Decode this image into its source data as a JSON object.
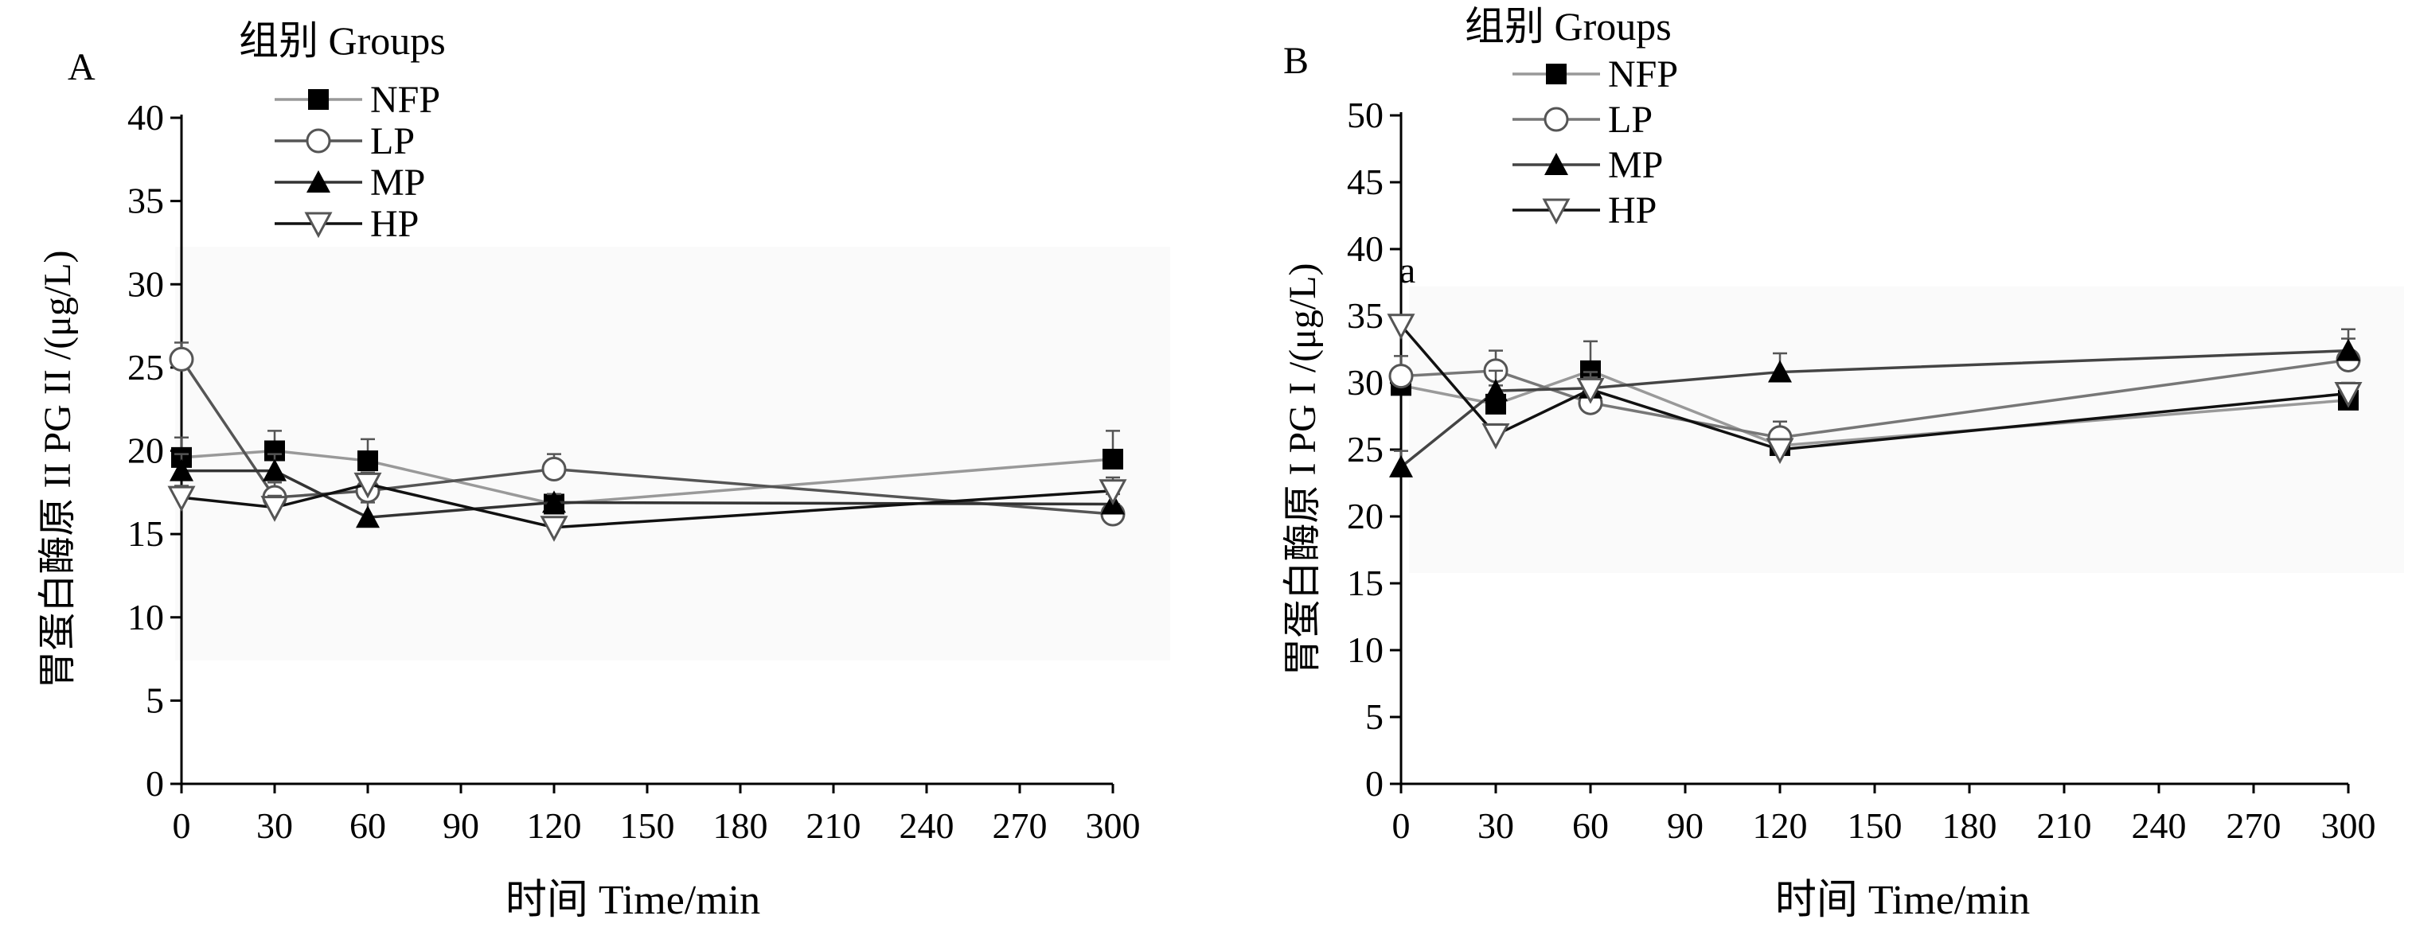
{
  "chart_data": [
    {
      "panel_label": "A",
      "type": "line",
      "legend_title": "组别 Groups",
      "xlabel": "时间  Time/min",
      "ylabel": "胃蛋白酶原 II  PG II /(μg/L)",
      "x_ticks": [
        0,
        30,
        60,
        90,
        120,
        150,
        180,
        210,
        240,
        270,
        300
      ],
      "y_ticks": [
        0,
        5,
        10,
        15,
        20,
        25,
        30,
        35,
        40
      ],
      "xlim": [
        0,
        300
      ],
      "ylim": [
        0,
        40
      ],
      "x": [
        0,
        30,
        60,
        120,
        300
      ],
      "series": [
        {
          "name": "NFP",
          "marker": "square",
          "color": "#999999",
          "values": [
            19.6,
            20.0,
            19.4,
            16.8,
            19.5
          ],
          "err": [
            1.2,
            1.2,
            1.3,
            0.6,
            1.7
          ]
        },
        {
          "name": "LP",
          "marker": "circle-open",
          "color": "#555555",
          "values": [
            25.5,
            17.2,
            17.6,
            18.9,
            16.2
          ],
          "err": [
            1.0,
            0.9,
            1.0,
            0.9,
            0.6
          ]
        },
        {
          "name": "MP",
          "marker": "triangle",
          "color": "#333333",
          "values": [
            18.8,
            18.8,
            16.0,
            16.9,
            16.8
          ],
          "err": [
            1.0,
            1.0,
            0.9,
            0.5,
            0.6
          ]
        },
        {
          "name": "HP",
          "marker": "triangle-down-open",
          "color": "#111111",
          "values": [
            17.2,
            16.6,
            18.0,
            15.4,
            17.6
          ],
          "err": [
            0.7,
            0.7,
            0.7,
            0.5,
            0.8
          ]
        }
      ]
    },
    {
      "panel_label": "B",
      "type": "line",
      "legend_title": "组别 Groups",
      "xlabel": "时间  Time/min",
      "ylabel": "胃蛋白酶原 I   PG I /(μg/L)",
      "x_ticks": [
        0,
        30,
        60,
        90,
        120,
        150,
        180,
        210,
        240,
        270,
        300
      ],
      "y_ticks": [
        0,
        5,
        10,
        15,
        20,
        25,
        30,
        35,
        40,
        45,
        50
      ],
      "xlim": [
        0,
        300
      ],
      "ylim": [
        0,
        50
      ],
      "x": [
        0,
        30,
        60,
        120,
        300
      ],
      "annotation": {
        "text": "a",
        "x": 0,
        "y": 37.5
      },
      "series": [
        {
          "name": "NFP",
          "marker": "square",
          "color": "#999999",
          "values": [
            29.8,
            28.4,
            30.9,
            25.3,
            28.7
          ],
          "err": [
            1.0,
            1.4,
            2.2,
            0.9,
            0.8
          ]
        },
        {
          "name": "LP",
          "marker": "circle-open",
          "color": "#777777",
          "values": [
            30.5,
            30.9,
            28.5,
            25.9,
            31.7
          ],
          "err": [
            1.5,
            1.5,
            0.8,
            1.2,
            1.6
          ]
        },
        {
          "name": "MP",
          "marker": "triangle",
          "color": "#444444",
          "values": [
            23.7,
            29.4,
            29.6,
            30.8,
            32.4
          ],
          "err": [
            1.2,
            1.5,
            1.2,
            1.4,
            1.6
          ]
        },
        {
          "name": "HP",
          "marker": "triangle-down-open",
          "color": "#111111",
          "values": [
            34.3,
            26.1,
            29.5,
            25.0,
            29.2
          ],
          "err": [
            0.7,
            0.8,
            0.9,
            0.7,
            0.8
          ]
        }
      ]
    }
  ]
}
